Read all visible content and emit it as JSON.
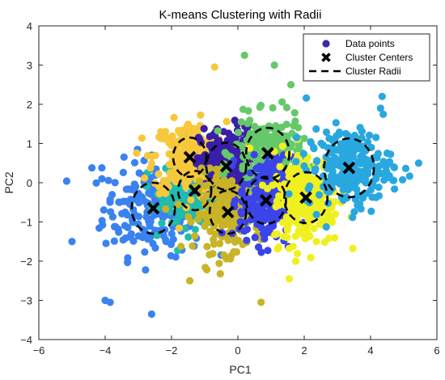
{
  "chart_data": {
    "type": "scatter",
    "title": "K-means Clustering with Radii",
    "xlabel": "PC1",
    "ylabel": "PC2",
    "xlim": [
      -6,
      6
    ],
    "ylim": [
      -4,
      4
    ],
    "xticks": [
      -6,
      -4,
      -2,
      0,
      2,
      4,
      6
    ],
    "yticks": [
      -4,
      -3,
      -2,
      -1,
      0,
      1,
      2,
      3,
      4
    ],
    "grid": false,
    "legend_position": "top-right",
    "legend": [
      {
        "label": "Data points",
        "marker": "circle",
        "color": "#3b2aa8"
      },
      {
        "label": "Cluster Centers",
        "marker": "x",
        "color": "#000000"
      },
      {
        "label": "Cluster Radii",
        "marker": "dashed-line",
        "color": "#000000"
      }
    ],
    "clusters": [
      {
        "center": [
          -2.55,
          -0.65
        ],
        "radius": 0.65,
        "color": "#3a82f0",
        "spread": [
          0.75,
          0.6
        ],
        "count": 230
      },
      {
        "center": [
          -1.3,
          -0.2
        ],
        "radius": 0.5,
        "color": "#1fbcb0",
        "spread": [
          0.5,
          0.45
        ],
        "count": 260
      },
      {
        "center": [
          -1.45,
          0.65
        ],
        "radius": 0.5,
        "color": "#f7c83a",
        "spread": [
          0.55,
          0.45
        ],
        "count": 240
      },
      {
        "center": [
          -0.35,
          0.42
        ],
        "radius": 0.6,
        "color": "#3a1ea8",
        "spread": [
          0.4,
          0.5
        ],
        "count": 240
      },
      {
        "center": [
          -0.3,
          -0.75
        ],
        "radius": 0.55,
        "color": "#c9b428",
        "spread": [
          0.5,
          0.5
        ],
        "count": 230
      },
      {
        "center": [
          0.9,
          0.75
        ],
        "radius": 0.65,
        "color": "#65c96a",
        "spread": [
          0.5,
          0.45
        ],
        "count": 240
      },
      {
        "center": [
          0.85,
          -0.45
        ],
        "radius": 0.6,
        "color": "#3a44e8",
        "spread": [
          0.4,
          0.55
        ],
        "count": 240
      },
      {
        "center": [
          2.05,
          -0.38
        ],
        "radius": 0.65,
        "color": "#f0f020",
        "spread": [
          0.5,
          0.6
        ],
        "count": 240
      },
      {
        "center": [
          3.35,
          0.38
        ],
        "radius": 0.75,
        "color": "#29a8e0",
        "spread": [
          0.65,
          0.5
        ],
        "count": 230
      }
    ],
    "outliers": [
      {
        "x": -0.7,
        "y": 2.95,
        "color": "#f7c83a"
      },
      {
        "x": 0.2,
        "y": 3.25,
        "color": "#65c96a"
      },
      {
        "x": 1.1,
        "y": 3.0,
        "color": "#65c96a"
      },
      {
        "x": 1.6,
        "y": 2.5,
        "color": "#65c96a"
      },
      {
        "x": -5.0,
        "y": -1.5,
        "color": "#3a82f0"
      },
      {
        "x": -4.0,
        "y": -3.0,
        "color": "#3a82f0"
      },
      {
        "x": -3.85,
        "y": -3.05,
        "color": "#3a82f0"
      },
      {
        "x": -2.6,
        "y": -3.35,
        "color": "#3a82f0"
      },
      {
        "x": -1.45,
        "y": -2.5,
        "color": "#c9b428"
      },
      {
        "x": 0.7,
        "y": -3.05,
        "color": "#c9b428"
      },
      {
        "x": 5.45,
        "y": 0.5,
        "color": "#29a8e0"
      },
      {
        "x": 4.3,
        "y": 1.9,
        "color": "#29a8e0"
      },
      {
        "x": 4.35,
        "y": 2.2,
        "color": "#29a8e0"
      },
      {
        "x": 1.55,
        "y": -2.45,
        "color": "#f0f020"
      },
      {
        "x": -4.4,
        "y": 0.38,
        "color": "#3a82f0"
      },
      {
        "x": -4.1,
        "y": 0.38,
        "color": "#3a82f0"
      }
    ]
  }
}
